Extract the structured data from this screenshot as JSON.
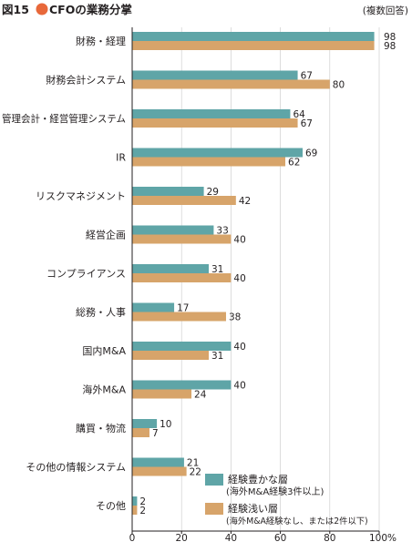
{
  "figure": {
    "number_label": "図15",
    "title": "CFOの業務分掌",
    "note": "(複数回答)"
  },
  "colors": {
    "teal": "#5fa5a7",
    "tan": "#d7a46a",
    "dot": "#e8683a",
    "text": "#231f20",
    "axis": "#231f20"
  },
  "chart_data": {
    "type": "bar",
    "orientation": "horizontal",
    "title": "CFOの業務分掌",
    "note": "(複数回答)",
    "categories": [
      "財務・経理",
      "財務会計システム",
      "管理会計・経営管理システム",
      "IR",
      "リスクマネジメント",
      "経営企画",
      "コンプライアンス",
      "総務・人事",
      "国内M&A",
      "海外M&A",
      "購買・物流",
      "その他の情報システム",
      "その他"
    ],
    "series": [
      {
        "name": "経験豊かな層",
        "name_note": "(海外M&A経験3件以上)",
        "values": [
          98,
          67,
          64,
          69,
          29,
          33,
          31,
          17,
          40,
          40,
          10,
          21,
          2
        ]
      },
      {
        "name": "経験浅い層",
        "name_note": "(海外M&A経験なし、または2件以下)",
        "values": [
          98,
          80,
          67,
          62,
          42,
          40,
          40,
          38,
          31,
          24,
          7,
          22,
          2
        ]
      }
    ],
    "xlim": [
      0,
      100
    ],
    "xticks": [
      "0",
      "20",
      "40",
      "60",
      "80",
      "100%"
    ],
    "legend_position": "bottom-right",
    "grid": false
  }
}
